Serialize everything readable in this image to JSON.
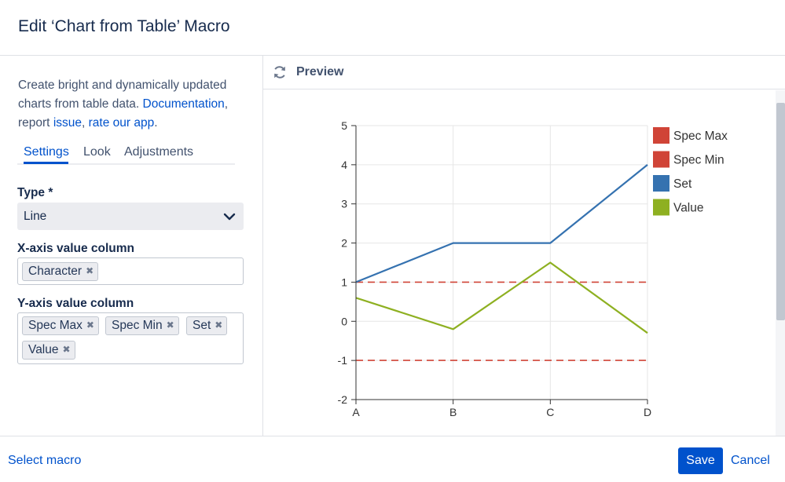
{
  "dialog": {
    "title": "Edit ‘Chart from Table’ Macro"
  },
  "sidebar": {
    "intro": {
      "text1": "Create bright and dynamically updated charts from table data. ",
      "documentation_link": "Documentation",
      "text2": ", report ",
      "issue_link": "issue",
      "text3": ", ",
      "rate_link": "rate our app",
      "text4": "."
    },
    "tabs": [
      {
        "label": "Settings",
        "active": true
      },
      {
        "label": "Look",
        "active": false
      },
      {
        "label": "Adjustments",
        "active": false
      }
    ],
    "type": {
      "label": "Type *",
      "value": "Line"
    },
    "x_axis": {
      "label": "X-axis value column",
      "tags": [
        "Character"
      ]
    },
    "y_axis": {
      "label": "Y-axis value column",
      "tags": [
        "Spec Max",
        "Spec Min",
        "Set",
        "Value"
      ]
    }
  },
  "preview": {
    "label": "Preview",
    "icon": "refresh-icon"
  },
  "footer": {
    "select_macro": "Select macro",
    "save": "Save",
    "cancel": "Cancel"
  },
  "chart_data": {
    "type": "line",
    "categories": [
      "A",
      "B",
      "C",
      "D"
    ],
    "ylim": [
      -2,
      5
    ],
    "y_ticks": [
      "5",
      "4",
      "3",
      "2",
      "1",
      "0",
      "-1",
      "-2"
    ],
    "grid": true,
    "legend_position": "right",
    "series": [
      {
        "name": "Spec Max",
        "values": [
          1,
          1,
          1,
          1
        ],
        "color": "#d04437",
        "dashed": true
      },
      {
        "name": "Spec Min",
        "values": [
          -1,
          -1,
          -1,
          -1
        ],
        "color": "#d04437",
        "dashed": true
      },
      {
        "name": "Set",
        "values": [
          1,
          2,
          2,
          4
        ],
        "color": "#3572b0",
        "dashed": false
      },
      {
        "name": "Value",
        "values": [
          0.6,
          -0.2,
          1.5,
          -0.3
        ],
        "color": "#8eb021",
        "dashed": false
      }
    ]
  }
}
